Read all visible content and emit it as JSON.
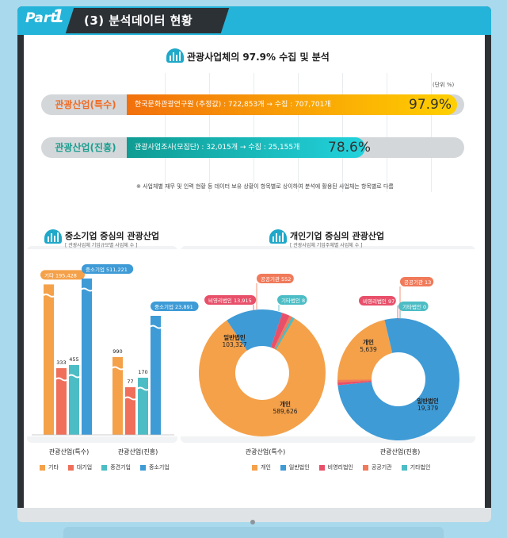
{
  "header": {
    "part_label": "Part",
    "part_number": "1",
    "title": "(3) 분석데이터 현황"
  },
  "coverage": {
    "title": "관광사업체의 97.9% 수집 및 분석",
    "unit": "(단위 %)",
    "rows": [
      {
        "label": "관광산업(특수)",
        "description": "한국문화관광연구원 (추정값) : 722,853개 → 수집 : 707,701개",
        "percent": 97.9,
        "percent_text": "97.9%",
        "color_start": "#f2700c",
        "color_end": "#ffd000",
        "label_color": "#f06c26"
      },
      {
        "label": "관광산업(진흥)",
        "description": "관광사업조사(모집단) : 32,015개 → 수집 : 25,155개",
        "percent": 78.6,
        "percent_text": "78.6%",
        "color_start": "#0f9c93",
        "color_end": "#22d2dc",
        "label_color": "#1a9e8f"
      }
    ],
    "note": "※ 사업체별 재무 및 인력 현황 등 데이터 보유 상황이 항목별로 상이하여 분석에 활용된 사업체는 항목별로 다름"
  },
  "left_panel": {
    "title": "중소기업 중심의 관광산업",
    "subtitle": "[ 관광사업체 기업규모별 사업체 수 ]"
  },
  "right_panel": {
    "title": "개인기업 중심의 관광산업",
    "subtitle": "[ 관광사업체 기업주체별 사업체 수 ]"
  },
  "chart_data": [
    {
      "type": "bar",
      "categories": [
        "관광산업(특수)",
        "관광산업(진흥)"
      ],
      "series": [
        {
          "name": "기타",
          "color": "#f4a14a",
          "values": [
            195428,
            990
          ],
          "labels": [
            "기타 195,428",
            "990"
          ]
        },
        {
          "name": "대기업",
          "color": "#ef6f5a",
          "values": [
            333,
            77
          ],
          "labels": [
            "333",
            "77"
          ]
        },
        {
          "name": "중견기업",
          "color": "#4dbdc5",
          "values": [
            455,
            170
          ],
          "labels": [
            "455",
            "170"
          ]
        },
        {
          "name": "중소기업",
          "color": "#3e9bd6",
          "values": [
            511221,
            23891
          ],
          "labels": [
            "중소기업 511,221",
            "중소기업 23,891"
          ]
        }
      ],
      "axis_break": true,
      "legend": "bottom"
    },
    {
      "type": "pie",
      "donut": true,
      "category": "관광산업(특수)",
      "slices": [
        {
          "name": "개인",
          "value": 589626,
          "color": "#f4a14a",
          "label": "개인",
          "value_text": "589,626"
        },
        {
          "name": "일반법인",
          "value": 103327,
          "color": "#3e9bd6",
          "label": "일반법인",
          "value_text": "103,327"
        },
        {
          "name": "비영리법인",
          "value": 13915,
          "color": "#e8506a",
          "label": "비영리법인 13,915"
        },
        {
          "name": "공공기관",
          "value": 552,
          "color": "#f07a5a",
          "label": "공공기관 552"
        },
        {
          "name": "기타법인",
          "value": 8,
          "color": "#4dbdc5",
          "label": "기타법인 8"
        }
      ]
    },
    {
      "type": "pie",
      "donut": true,
      "category": "관광산업(진흥)",
      "slices": [
        {
          "name": "개인",
          "value": 5639,
          "color": "#f4a14a",
          "label": "개인",
          "value_text": "5,639"
        },
        {
          "name": "일반법인",
          "value": 19379,
          "color": "#3e9bd6",
          "label": "일반법인",
          "value_text": "19,379"
        },
        {
          "name": "비영리법인",
          "value": 97,
          "color": "#e8506a",
          "label": "비영리법인 97"
        },
        {
          "name": "공공기관",
          "value": 13,
          "color": "#f07a5a",
          "label": "공공기관 13"
        },
        {
          "name": "기타법인",
          "value": 0,
          "color": "#4dbdc5",
          "label": "기타법인 0"
        }
      ],
      "legend": "bottom"
    }
  ]
}
